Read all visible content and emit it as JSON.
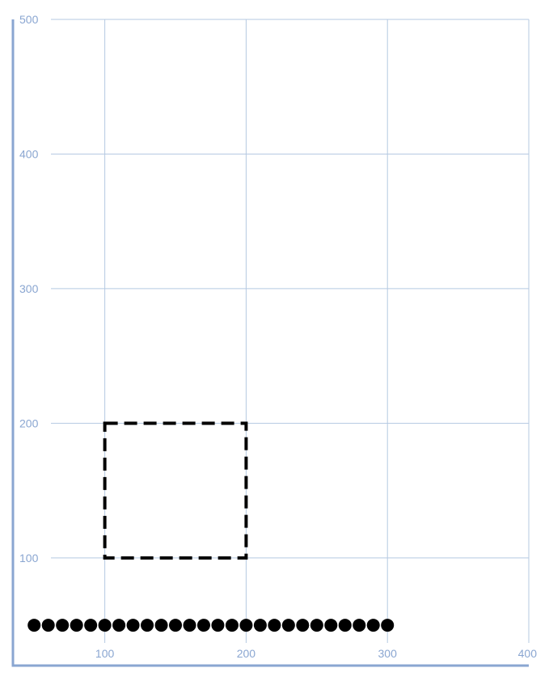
{
  "chart_data": {
    "type": "scatter",
    "title": "",
    "xlabel": "",
    "ylabel": "",
    "xlim": [
      35,
      400
    ],
    "ylim": [
      20,
      500
    ],
    "x_ticks": [
      100,
      200,
      300,
      400
    ],
    "y_ticks": [
      100,
      200,
      300,
      400,
      500
    ],
    "grid": true,
    "series": [
      {
        "points": [
          [
            50,
            50
          ],
          [
            60,
            50
          ],
          [
            70,
            50
          ],
          [
            80,
            50
          ],
          [
            90,
            50
          ],
          [
            100,
            50
          ],
          [
            110,
            50
          ],
          [
            120,
            50
          ],
          [
            130,
            50
          ],
          [
            140,
            50
          ],
          [
            150,
            50
          ],
          [
            160,
            50
          ],
          [
            170,
            50
          ],
          [
            180,
            50
          ],
          [
            190,
            50
          ],
          [
            200,
            50
          ],
          [
            210,
            50
          ],
          [
            220,
            50
          ],
          [
            230,
            50
          ],
          [
            240,
            50
          ],
          [
            250,
            50
          ],
          [
            260,
            50
          ],
          [
            270,
            50
          ],
          [
            280,
            50
          ],
          [
            290,
            50
          ],
          [
            300,
            50
          ]
        ],
        "color": "#000000"
      }
    ],
    "shapes": [
      {
        "type": "dashed-rectangle",
        "x": [
          100,
          200
        ],
        "y": [
          100,
          200
        ],
        "color": "#000000"
      }
    ],
    "colors": {
      "grid": "#b5c9e2",
      "axis": "#8aa6d1",
      "tick_label": "#8aa6d1"
    }
  }
}
